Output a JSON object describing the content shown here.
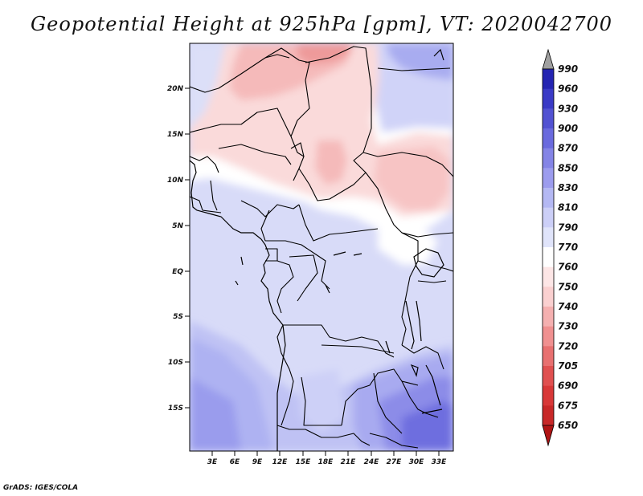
{
  "title": "Geopotential Height at 925hPa [gpm], VT: 2020042700",
  "credit": "GrADS: IGES/COLA",
  "map": {
    "lat_labels": [
      "20N",
      "15N",
      "10N",
      "5N",
      "EQ",
      "5S",
      "10S",
      "15S"
    ],
    "lon_labels": [
      "3E",
      "6E",
      "9E",
      "12E",
      "15E",
      "18E",
      "21E",
      "24E",
      "27E",
      "30E",
      "33E"
    ]
  },
  "colorbar": {
    "levels": [
      "990",
      "960",
      "930",
      "900",
      "870",
      "850",
      "830",
      "810",
      "790",
      "770",
      "760",
      "750",
      "740",
      "730",
      "720",
      "705",
      "690",
      "675",
      "650"
    ],
    "colors": {
      "low_cap": "#b01414",
      "high_cap": "#a0a0a0",
      "bins_low_to_high": [
        "#b81818",
        "#c82828",
        "#d83838",
        "#e05050",
        "#e87070",
        "#f09090",
        "#f5b0b0",
        "#fad0d0",
        "#fde6e6",
        "#ffffff",
        "#e0e4fa",
        "#cccff7",
        "#b4b8f3",
        "#9c9cee",
        "#8484e6",
        "#6a6ade",
        "#5252d2",
        "#3a3ac6",
        "#2424b2",
        "#12129a"
      ]
    }
  }
}
